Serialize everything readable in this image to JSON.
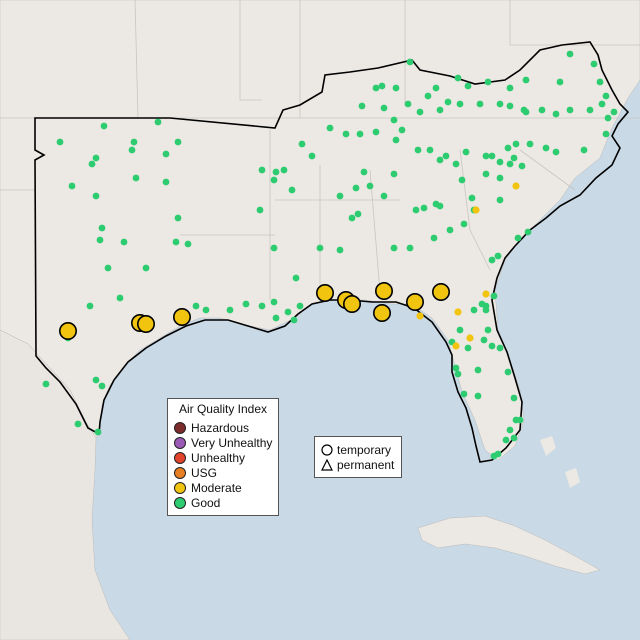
{
  "legend": {
    "title": "Air Quality Index",
    "categories": [
      {
        "label": "Hazardous",
        "color": "#7e2b2b"
      },
      {
        "label": "Very Unhealthy",
        "color": "#9b59b6"
      },
      {
        "label": "Unhealthy",
        "color": "#e0442c"
      },
      {
        "label": "USG",
        "color": "#e67e22"
      },
      {
        "label": "Moderate",
        "color": "#f1c40f"
      },
      {
        "label": "Good",
        "color": "#2ecc71"
      }
    ]
  },
  "type_legend": {
    "temporary_label": "temporary",
    "permanent_label": "permanent"
  },
  "colors": {
    "ocean": "#c9d9e6",
    "land": "#ece9e4",
    "boundary": "#000000",
    "good": "#2ecc71",
    "moderate": "#f1c40f"
  }
}
